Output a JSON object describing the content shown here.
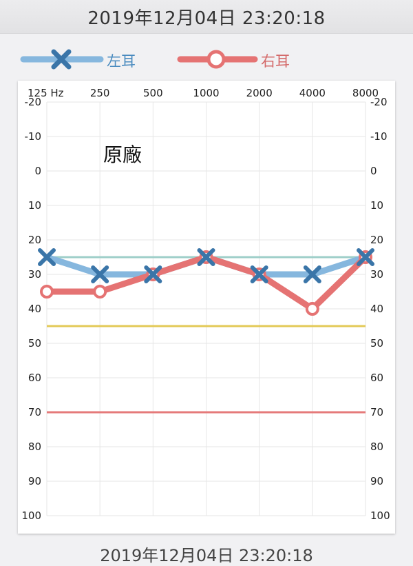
{
  "header": {
    "datetime": "2019年12月04日 23:20:18"
  },
  "legend": {
    "left_label": "左耳",
    "right_label": "右耳"
  },
  "annotation": "原廠",
  "colors": {
    "left": "#86b7de",
    "left_marker": "#3a75a8",
    "right": "#e57373",
    "ref_teal": "#9fcfca",
    "ref_yellow": "#e3c957",
    "ref_red": "#e57a7a"
  },
  "chart_data": {
    "type": "line",
    "categories": [
      "125 Hz",
      "250",
      "500",
      "1000",
      "2000",
      "4000",
      "8000"
    ],
    "y_ticks": [
      -20,
      -10,
      0,
      10,
      20,
      30,
      40,
      50,
      60,
      70,
      80,
      90,
      100
    ],
    "ylim": [
      -20,
      100
    ],
    "y_inverted": true,
    "grid": true,
    "legend_position": "top",
    "series": [
      {
        "name": "左耳",
        "marker": "x",
        "values": [
          25,
          30,
          30,
          25,
          30,
          30,
          25
        ]
      },
      {
        "name": "右耳",
        "marker": "circle",
        "values": [
          35,
          35,
          30,
          25,
          30,
          40,
          25
        ]
      }
    ],
    "reference_lines": [
      {
        "value": 25,
        "color": "teal"
      },
      {
        "value": 45,
        "color": "yellow"
      },
      {
        "value": 70,
        "color": "red"
      }
    ]
  },
  "footer": {
    "partial_text": "2019年12月04日 23:20:18"
  }
}
